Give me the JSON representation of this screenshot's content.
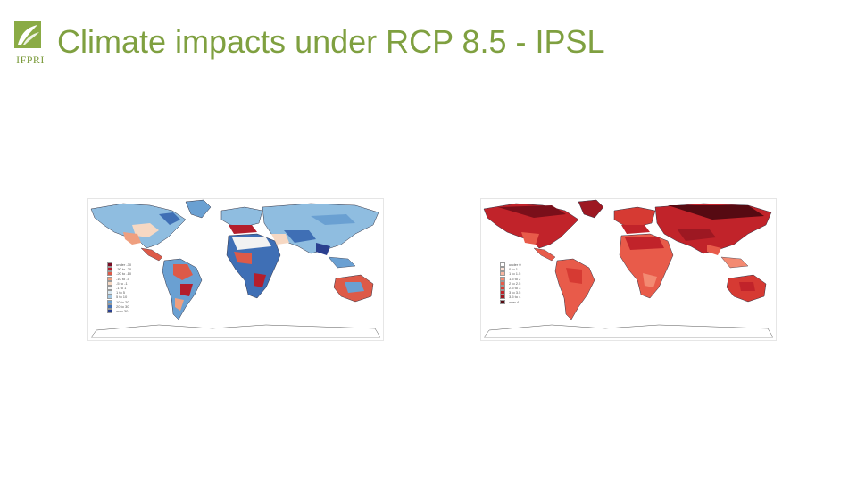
{
  "header": {
    "logo_text": "IFPRI",
    "title": "Climate impacts under RCP 8.5 - IPSL"
  },
  "colors": {
    "title": "#7fa040",
    "logo": "#7a9a3a",
    "left_palette": [
      "#2a3f8f",
      "#3f6fb5",
      "#6aa0d2",
      "#a3c8e4",
      "#d8e8f2",
      "#f2f2f2",
      "#f6d8c3",
      "#ef9f7f",
      "#dd5a48",
      "#b41e2c",
      "#7a0d25"
    ],
    "right_palette": [
      "#fde3d8",
      "#f9b6a0",
      "#f38a72",
      "#e85b4a",
      "#d63a33",
      "#c1232a",
      "#9d1822",
      "#7a0f1a",
      "#560a12"
    ]
  },
  "maps": {
    "left": {
      "legend": [
        {
          "label": "under -30",
          "color": "#7a0d25"
        },
        {
          "label": "-30 to -20",
          "color": "#b41e2c"
        },
        {
          "label": "-20 to -10",
          "color": "#dd5a48"
        },
        {
          "label": "-10 to -5",
          "color": "#ef9f7f"
        },
        {
          "label": "-5 to -1",
          "color": "#f6d8c3"
        },
        {
          "label": "-1 to 1",
          "color": "#f2f2f2"
        },
        {
          "label": "1 to 5",
          "color": "#d8e8f2"
        },
        {
          "label": "5 to 10",
          "color": "#a3c8e4"
        },
        {
          "label": "10 to 20",
          "color": "#6aa0d2"
        },
        {
          "label": "20 to 30",
          "color": "#3f6fb5"
        },
        {
          "label": "over 30",
          "color": "#2a3f8f"
        }
      ]
    },
    "right": {
      "legend": [
        {
          "label": "under 0",
          "color": "#ffffff"
        },
        {
          "label": "0 to 1",
          "color": "#fde3d8"
        },
        {
          "label": "1 to 1.5",
          "color": "#f9b6a0"
        },
        {
          "label": "1.5 to 2",
          "color": "#f38a72"
        },
        {
          "label": "2 to 2.5",
          "color": "#e85b4a"
        },
        {
          "label": "2.5 to 3",
          "color": "#d63a33"
        },
        {
          "label": "3 to 3.5",
          "color": "#c1232a"
        },
        {
          "label": "3.5 to 4",
          "color": "#9d1822"
        },
        {
          "label": "over 4",
          "color": "#560a12"
        }
      ]
    }
  }
}
